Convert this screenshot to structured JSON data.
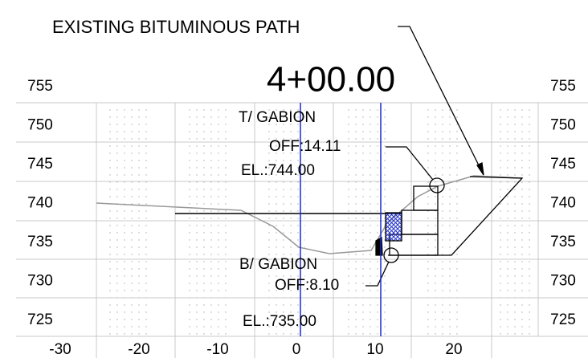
{
  "header": {
    "note": "EXISTING  BITUMINOUS  PATH",
    "station": "4+00.00"
  },
  "elevations": [
    755,
    750,
    745,
    740,
    735,
    730,
    725
  ],
  "offsets": [
    -30,
    -20,
    -10,
    0,
    10,
    20
  ],
  "callouts": [
    {
      "label": "T/ GABION",
      "offset": "OFF:14.11",
      "elevation": "EL.:744.00"
    },
    {
      "label": "B/ GABION",
      "offset": "OFF:8.10",
      "elevation": "EL.:735.00"
    }
  ]
}
